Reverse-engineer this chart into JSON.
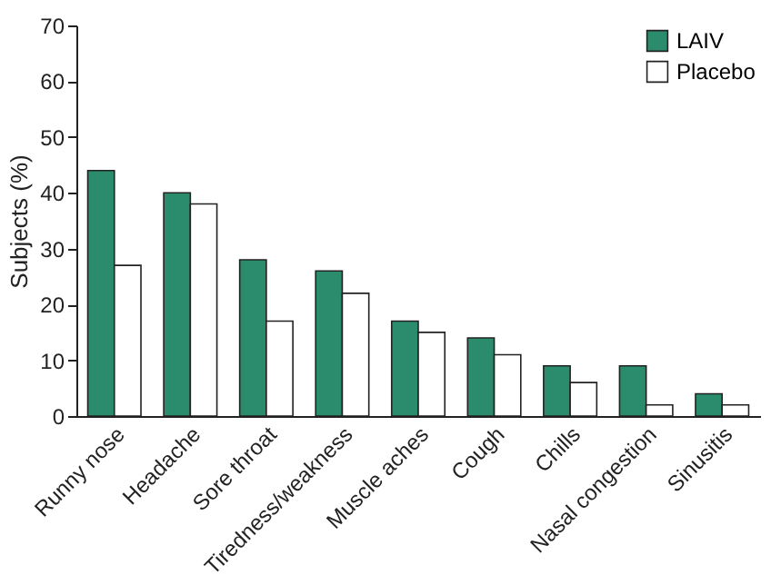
{
  "chart_data": {
    "type": "bar",
    "ylabel": "Subjects (%)",
    "categories": [
      "Runny nose",
      "Headache",
      "Sore throat",
      "Tiredness/weakness",
      "Muscle aches",
      "Cough",
      "Chills",
      "Nasal congestion",
      "Sinusitis"
    ],
    "series": [
      {
        "name": "LAIV",
        "color": "#2a8c6c",
        "values": [
          44,
          40,
          28,
          26,
          17,
          14,
          9,
          9,
          4
        ]
      },
      {
        "name": "Placebo",
        "color": "#ffffff",
        "values": [
          27,
          38,
          17,
          22,
          15,
          11,
          6,
          2,
          2
        ]
      }
    ],
    "ylim": [
      0,
      70
    ],
    "yticks": [
      0,
      10,
      20,
      30,
      40,
      50,
      60,
      70
    ],
    "grid": false,
    "legend": "top right"
  }
}
